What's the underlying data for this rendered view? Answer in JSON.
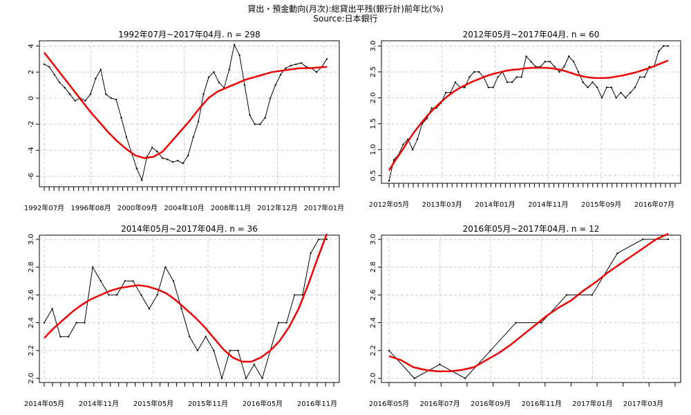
{
  "figure": {
    "title": "貸出・預金動向(月次):総貸出平残(銀行計)前年比(%)",
    "subtitle": "Source:日本銀行"
  },
  "chart_data": [
    {
      "type": "line",
      "title": "1992年07月~2017年04月. n = 298",
      "x_tick_labels": [
        "1992年07月",
        "1996年08月",
        "2000年09月",
        "2004年10月",
        "2008年11月",
        "2012年12月",
        "2017年01月"
      ],
      "y_ticks": [
        "4",
        "2",
        "0",
        "-2",
        "-4",
        "-6"
      ],
      "ylim": [
        -6.8,
        4.4
      ],
      "grid": true,
      "series": [
        {
          "color": "#000000",
          "values": [
            2.6,
            2.4,
            1.8,
            1.2,
            0.8,
            0.3,
            -0.2,
            0.0,
            -0.2,
            0.3,
            1.5,
            2.2,
            0.3,
            0.0,
            -0.1,
            -1.5,
            -3.0,
            -4.2,
            -5.4,
            -6.3,
            -4.5,
            -3.8,
            -4.1,
            -4.6,
            -4.7,
            -4.9,
            -4.8,
            -5.0,
            -4.4,
            -3.0,
            -1.8,
            0.3,
            1.6,
            2.0,
            1.2,
            0.8,
            2.2,
            4.1,
            3.3,
            1.0,
            -1.3,
            -2.0,
            -2.0,
            -1.5,
            0.0,
            1.0,
            1.8,
            2.3,
            2.5,
            2.6,
            2.7,
            2.4,
            2.3,
            2.0,
            2.4,
            3.0
          ]
        },
        {
          "color": "#ee0000",
          "values": [
            3.5,
            2.6,
            1.7,
            0.8,
            -0.1,
            -1.0,
            -1.8,
            -2.6,
            -3.3,
            -3.9,
            -4.4,
            -4.6,
            -4.5,
            -4.1,
            -3.3,
            -2.5,
            -1.7,
            -0.8,
            0.0,
            0.5,
            0.8,
            1.1,
            1.4,
            1.6,
            1.8,
            2.0,
            2.1,
            2.2,
            2.3,
            2.3,
            2.35,
            2.4
          ]
        }
      ]
    },
    {
      "type": "line",
      "title": "2012年05月~2017年04月. n = 60",
      "x_tick_labels": [
        "2012年05月",
        "2013年03月",
        "2014年01月",
        "2014年11月",
        "2015年09月",
        "2016年07月"
      ],
      "y_ticks": [
        "3.0",
        "2.5",
        "2.0",
        "1.5",
        "1.0",
        "0.5"
      ],
      "ylim": [
        0.35,
        3.1
      ],
      "grid": true,
      "series": [
        {
          "color": "#000000",
          "values": [
            0.4,
            0.8,
            0.9,
            1.1,
            1.2,
            1.0,
            1.2,
            1.5,
            1.6,
            1.8,
            1.8,
            1.9,
            2.1,
            2.1,
            2.3,
            2.2,
            2.2,
            2.4,
            2.5,
            2.5,
            2.4,
            2.2,
            2.2,
            2.4,
            2.5,
            2.3,
            2.3,
            2.4,
            2.4,
            2.8,
            2.7,
            2.6,
            2.6,
            2.7,
            2.7,
            2.6,
            2.5,
            2.6,
            2.8,
            2.7,
            2.5,
            2.3,
            2.2,
            2.3,
            2.2,
            2.0,
            2.2,
            2.2,
            2.0,
            2.1,
            2.0,
            2.1,
            2.2,
            2.4,
            2.4,
            2.6,
            2.6,
            2.9,
            3.0,
            3.0
          ]
        },
        {
          "color": "#ee0000",
          "values": [
            0.6,
            0.8,
            0.98,
            1.18,
            1.36,
            1.52,
            1.67,
            1.8,
            1.92,
            2.03,
            2.12,
            2.2,
            2.26,
            2.32,
            2.37,
            2.42,
            2.46,
            2.49,
            2.52,
            2.54,
            2.55,
            2.57,
            2.58,
            2.58,
            2.58,
            2.57,
            2.55,
            2.52,
            2.48,
            2.44,
            2.41,
            2.39,
            2.38,
            2.38,
            2.39,
            2.41,
            2.43,
            2.46,
            2.49,
            2.53,
            2.57,
            2.62,
            2.67,
            2.72
          ]
        }
      ]
    },
    {
      "type": "line",
      "title": "2014年05月~2017年04月. n = 36",
      "x_tick_labels": [
        "2014年05月",
        "2014年11月",
        "2015年05月",
        "2015年11月",
        "2016年05月",
        "2016年11月"
      ],
      "y_ticks": [
        "3.0",
        "2.8",
        "2.6",
        "2.4",
        "2.2",
        "2.0"
      ],
      "ylim": [
        1.97,
        3.03
      ],
      "grid": true,
      "series": [
        {
          "color": "#000000",
          "values": [
            2.4,
            2.5,
            2.3,
            2.3,
            2.4,
            2.4,
            2.8,
            2.7,
            2.6,
            2.6,
            2.7,
            2.7,
            2.6,
            2.5,
            2.6,
            2.8,
            2.7,
            2.5,
            2.3,
            2.2,
            2.3,
            2.2,
            2.0,
            2.2,
            2.2,
            2.0,
            2.1,
            2.0,
            2.2,
            2.4,
            2.4,
            2.6,
            2.6,
            2.9,
            3.0,
            3.0
          ]
        },
        {
          "color": "#ee0000",
          "values": [
            2.29,
            2.36,
            2.42,
            2.48,
            2.53,
            2.57,
            2.6,
            2.63,
            2.65,
            2.66,
            2.67,
            2.66,
            2.64,
            2.61,
            2.56,
            2.5,
            2.44,
            2.37,
            2.29,
            2.21,
            2.15,
            2.12,
            2.12,
            2.15,
            2.2,
            2.27,
            2.37,
            2.5,
            2.67,
            2.86,
            3.04
          ]
        }
      ]
    },
    {
      "type": "line",
      "title": "2016年05月~2017年04月. n = 12",
      "x_tick_labels": [
        "2016年05月",
        "2016年07月",
        "2016年09月",
        "2016年11月",
        "2017年01月",
        "2017年03月"
      ],
      "y_ticks": [
        "3.0",
        "2.8",
        "2.6",
        "2.4",
        "2.2",
        "2.0"
      ],
      "ylim": [
        1.97,
        3.03
      ],
      "grid": true,
      "series": [
        {
          "color": "#000000",
          "values": [
            2.2,
            2.0,
            2.1,
            2.0,
            2.2,
            2.4,
            2.4,
            2.6,
            2.6,
            2.9,
            3.0,
            3.0
          ]
        },
        {
          "color": "#ee0000",
          "values": [
            2.16,
            2.13,
            2.08,
            2.06,
            2.05,
            2.05,
            2.06,
            2.08,
            2.13,
            2.18,
            2.24,
            2.31,
            2.38,
            2.45,
            2.51,
            2.56,
            2.63,
            2.69,
            2.76,
            2.82,
            2.88,
            2.94,
            3.0,
            3.04
          ]
        }
      ]
    }
  ]
}
